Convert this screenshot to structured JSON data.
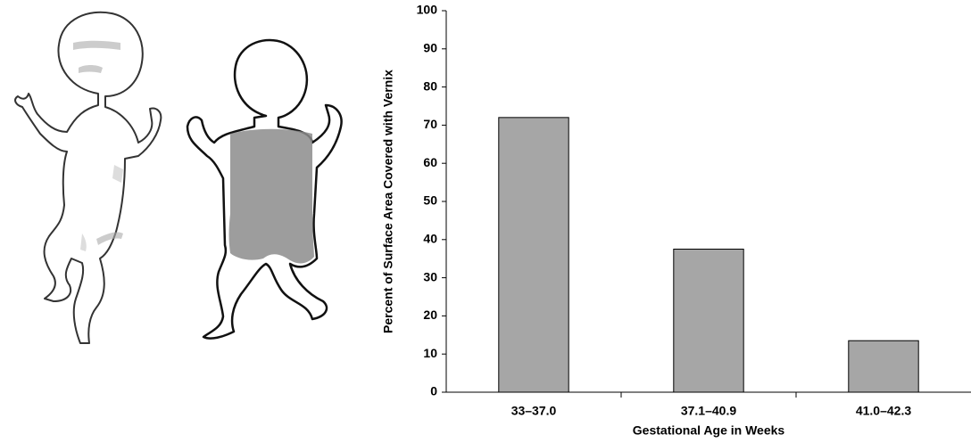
{
  "chart_data": {
    "type": "bar",
    "y_label": "Percent of Surface Area Covered with Vernix",
    "x_label": "Gestational Age in Weeks",
    "categories": [
      "33–37.0",
      "37.1–40.9",
      "41.0–42.3"
    ],
    "values": [
      72,
      37.5,
      13.5
    ],
    "color": "#a6a6a6",
    "ylim": [
      0,
      100
    ],
    "yticks": [
      0,
      10,
      20,
      30,
      40,
      50,
      60,
      70,
      80,
      90,
      100
    ],
    "grid": false
  }
}
